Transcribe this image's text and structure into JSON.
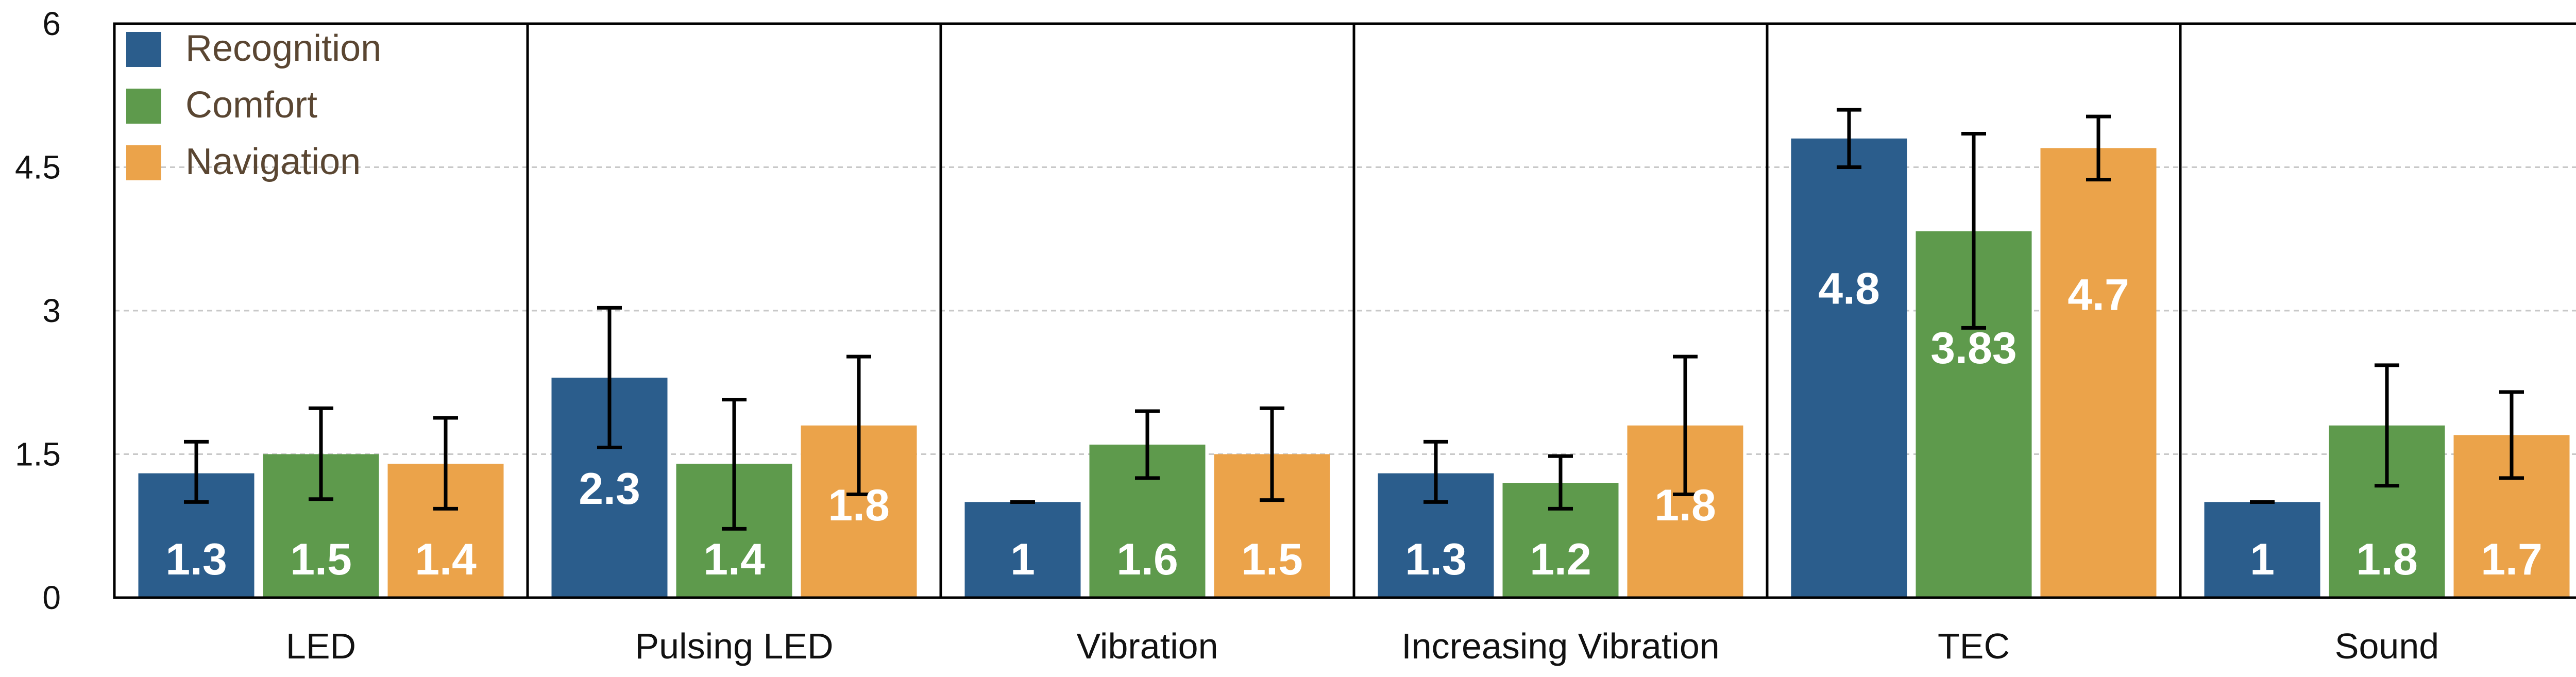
{
  "colors": {
    "Recognition": "#2b5d8c",
    "Comfort": "#5e9a4c",
    "Navigation": "#eba34a",
    "grid": "#c8c8c8",
    "frame": "#000000"
  },
  "chart_data": {
    "type": "bar",
    "title": "",
    "xlabel": "",
    "ylabel": "",
    "ylim": [
      0,
      6
    ],
    "yticks": [
      "0",
      "1.5",
      "3",
      "4.5",
      "6"
    ],
    "grid": "horizontal dashed",
    "legend_placement": "top-left",
    "categories": [
      "LED",
      "Pulsing LED",
      "Vibration",
      "Increasing Vibration",
      "TEC",
      "Sound"
    ],
    "series": [
      {
        "name": "Recognition",
        "values": [
          1.3,
          2.3,
          1,
          1.3,
          4.8,
          1
        ],
        "labels": [
          "1.3",
          "2.3",
          "1",
          "1.3",
          "4.8",
          "1"
        ],
        "error": [
          [
            1.0,
            1.63
          ],
          [
            1.57,
            3.03
          ],
          [
            1.0,
            1.0
          ],
          [
            1.0,
            1.63
          ],
          [
            4.5,
            5.1
          ],
          [
            1.0,
            1.0
          ]
        ]
      },
      {
        "name": "Comfort",
        "values": [
          1.5,
          1.4,
          1.6,
          1.2,
          3.83,
          1.8
        ],
        "labels": [
          "1.5",
          "1.4",
          "1.6",
          "1.2",
          "3.83",
          "1.8"
        ],
        "error": [
          [
            1.03,
            1.98
          ],
          [
            0.72,
            2.07
          ],
          [
            1.25,
            1.95
          ],
          [
            0.93,
            1.48
          ],
          [
            2.82,
            4.85
          ],
          [
            1.17,
            2.43
          ]
        ]
      },
      {
        "name": "Navigation",
        "values": [
          1.4,
          1.8,
          1.5,
          1.8,
          4.7,
          1.7
        ],
        "labels": [
          "1.4",
          "1.8",
          "1.5",
          "1.8",
          "4.7",
          "1.7"
        ],
        "error": [
          [
            0.93,
            1.88
          ],
          [
            1.08,
            2.52
          ],
          [
            1.02,
            1.98
          ],
          [
            1.08,
            2.52
          ],
          [
            4.37,
            5.03
          ],
          [
            1.25,
            2.15
          ]
        ]
      }
    ]
  }
}
